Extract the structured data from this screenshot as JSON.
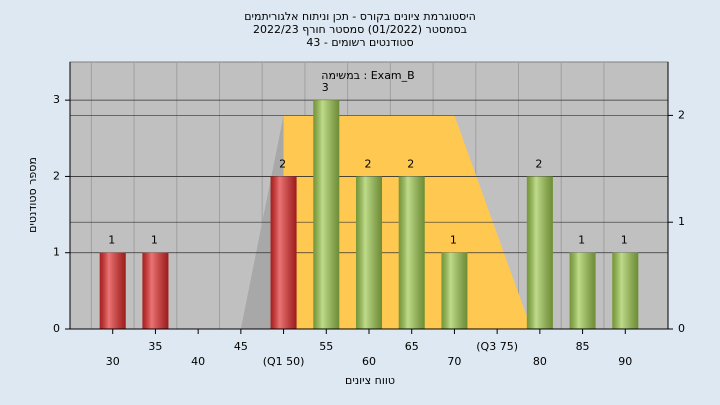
{
  "chart_data": {
    "type": "bar",
    "title": [
      "היסטוגרמת ציונים בקורס - תכן וניתוח אלגוריתמים",
      "בסמסטר  (01/2022)  סמסטר חורף 2022/23",
      "סטודנטים רשומים - 43"
    ],
    "annotation": "במשימה : Exam_B",
    "xlabel": "טווח ציונים",
    "ylabel": "מספר סטודנטים",
    "categories": [
      "30",
      "35",
      "40",
      "45",
      "(Q1 50)",
      "55",
      "60",
      "65",
      "70",
      "(Q3 75)",
      "80",
      "85",
      "90"
    ],
    "values": [
      1,
      1,
      0,
      0,
      2,
      3,
      2,
      2,
      1,
      0,
      2,
      1,
      1
    ],
    "colors": [
      "#e02828",
      "#e02828",
      "#e02828",
      "#e02828",
      "#e02828",
      "#9cc84c",
      "#9cc84c",
      "#9cc84c",
      "#9cc84c",
      "#9cc84c",
      "#9cc84c",
      "#9cc84c",
      "#9cc84c"
    ],
    "ylim": [
      0,
      3.5
    ],
    "yticks": [
      0,
      1,
      2,
      3
    ],
    "y2lim": [
      0,
      2.5
    ],
    "y2ticks": [
      0,
      1,
      2
    ],
    "grid": true,
    "areas": [
      {
        "color": "#a8a8a8",
        "x": [
          45,
          50,
          50
        ],
        "values": [
          0,
          2,
          0
        ],
        "axis": "y2"
      },
      {
        "color": "#ffc850",
        "x": [
          50,
          50,
          70,
          79
        ],
        "values": [
          0,
          2,
          2,
          0
        ],
        "axis": "y2"
      }
    ]
  }
}
